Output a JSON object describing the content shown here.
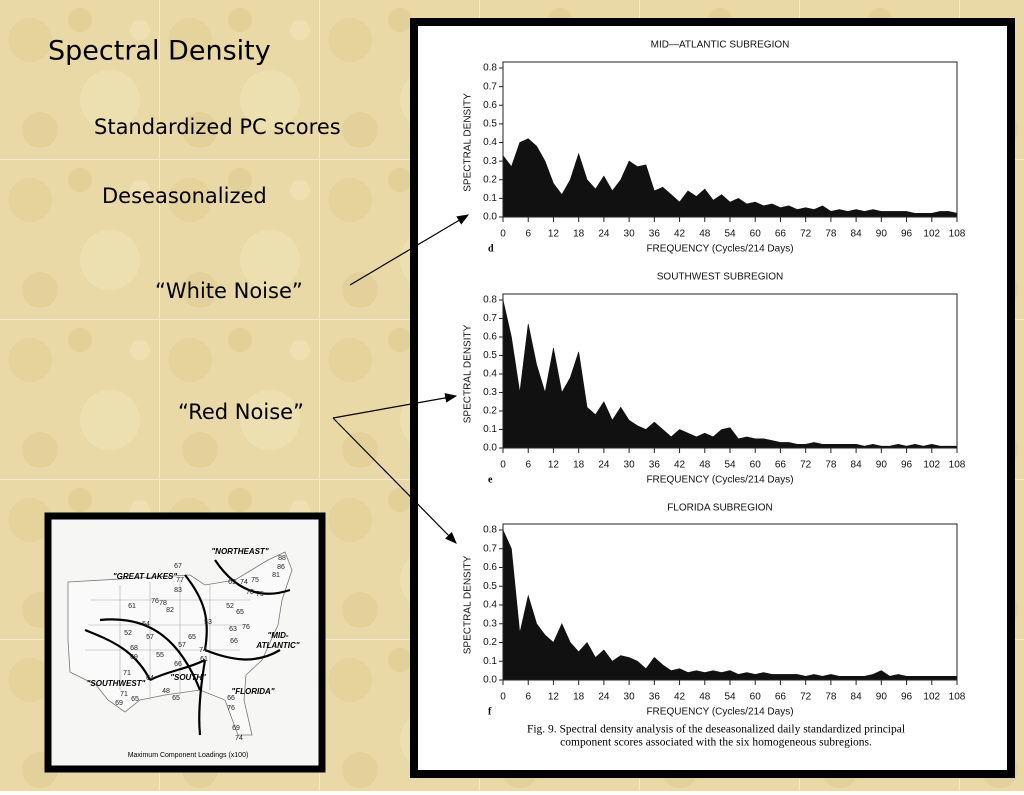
{
  "slide": {
    "title": "Spectral Density",
    "subtitle": "Standardized PC scores",
    "subtitle2": "Deseasonalized",
    "white_noise": "“White Noise”",
    "red_noise": "“Red Noise”"
  },
  "figure": {
    "caption": [
      "Fig. 9. Spectral density analysis of the deseasonalized daily standardized principal",
      "component scores associated with the six homogeneous subregions."
    ]
  },
  "chart_data": [
    {
      "type": "area",
      "title": "MID—ATLANTIC SUBREGION",
      "panel": "d",
      "x_label": "FREQUENCY (Cycles/214 Days)",
      "y_label": "SPECTRAL DENSITY",
      "color": "#111111",
      "x": [
        0,
        2,
        4,
        6,
        8,
        10,
        12,
        14,
        16,
        18,
        20,
        22,
        24,
        26,
        28,
        30,
        32,
        34,
        36,
        38,
        40,
        42,
        44,
        46,
        48,
        50,
        52,
        54,
        56,
        58,
        60,
        62,
        64,
        66,
        68,
        70,
        72,
        74,
        76,
        78,
        80,
        82,
        84,
        86,
        88,
        90,
        92,
        94,
        96,
        98,
        100,
        102,
        104,
        106,
        108
      ],
      "values": [
        0.33,
        0.27,
        0.4,
        0.42,
        0.38,
        0.3,
        0.18,
        0.12,
        0.2,
        0.34,
        0.2,
        0.15,
        0.22,
        0.14,
        0.2,
        0.3,
        0.27,
        0.28,
        0.14,
        0.16,
        0.12,
        0.08,
        0.14,
        0.11,
        0.15,
        0.09,
        0.12,
        0.08,
        0.1,
        0.07,
        0.08,
        0.06,
        0.07,
        0.05,
        0.06,
        0.04,
        0.05,
        0.04,
        0.06,
        0.03,
        0.04,
        0.03,
        0.04,
        0.03,
        0.04,
        0.03,
        0.03,
        0.03,
        0.03,
        0.02,
        0.02,
        0.02,
        0.03,
        0.03,
        0.02
      ],
      "xlim": [
        0,
        108
      ],
      "ylim": [
        0,
        0.8
      ],
      "xticks": [
        0,
        6,
        12,
        18,
        24,
        30,
        36,
        42,
        48,
        54,
        60,
        66,
        72,
        78,
        84,
        90,
        96,
        102,
        108
      ],
      "yticks": [
        {
          "value": 0,
          "label": "0.0"
        },
        0.1,
        0.2,
        0.3,
        0.4,
        0.5,
        0.6,
        0.7,
        0.8
      ]
    },
    {
      "type": "area",
      "title": "SOUTHWEST SUBREGION",
      "panel": "e",
      "x_label": "FREQUENCY (Cycles/214 Days)",
      "y_label": "SPECTRAL DENSITY",
      "color": "#111111",
      "x": [
        0,
        2,
        4,
        6,
        8,
        10,
        12,
        14,
        16,
        18,
        20,
        22,
        24,
        26,
        28,
        30,
        32,
        34,
        36,
        38,
        40,
        42,
        44,
        46,
        48,
        50,
        52,
        54,
        56,
        58,
        60,
        62,
        64,
        66,
        68,
        70,
        72,
        74,
        76,
        78,
        80,
        82,
        84,
        86,
        88,
        90,
        92,
        94,
        96,
        98,
        100,
        102,
        104,
        106,
        108
      ],
      "values": [
        0.8,
        0.6,
        0.3,
        0.67,
        0.45,
        0.3,
        0.54,
        0.3,
        0.38,
        0.52,
        0.22,
        0.18,
        0.25,
        0.15,
        0.22,
        0.15,
        0.12,
        0.1,
        0.14,
        0.1,
        0.06,
        0.1,
        0.08,
        0.06,
        0.08,
        0.06,
        0.1,
        0.11,
        0.05,
        0.06,
        0.05,
        0.05,
        0.04,
        0.03,
        0.03,
        0.02,
        0.02,
        0.03,
        0.02,
        0.02,
        0.02,
        0.02,
        0.02,
        0.01,
        0.02,
        0.01,
        0.01,
        0.02,
        0.01,
        0.02,
        0.01,
        0.02,
        0.01,
        0.01,
        0.01
      ],
      "xlim": [
        0,
        108
      ],
      "ylim": [
        0,
        0.8
      ],
      "xticks": [
        0,
        6,
        12,
        18,
        24,
        30,
        36,
        42,
        48,
        54,
        60,
        66,
        72,
        78,
        84,
        90,
        96,
        102,
        108
      ],
      "yticks": [
        {
          "value": 0,
          "label": "0.0"
        },
        0.1,
        0.2,
        0.3,
        0.4,
        0.5,
        0.6,
        0.7,
        0.8
      ]
    },
    {
      "type": "area",
      "title": "FLORIDA SUBREGION",
      "panel": "f",
      "x_label": "FREQUENCY (Cycles/214 Days)",
      "y_label": "SPECTRAL DENSITY",
      "color": "#111111",
      "x": [
        0,
        2,
        4,
        6,
        8,
        10,
        12,
        14,
        16,
        18,
        20,
        22,
        24,
        26,
        28,
        30,
        32,
        34,
        36,
        38,
        40,
        42,
        44,
        46,
        48,
        50,
        52,
        54,
        56,
        58,
        60,
        62,
        64,
        66,
        68,
        70,
        72,
        74,
        76,
        78,
        80,
        82,
        84,
        86,
        88,
        90,
        92,
        94,
        96,
        98,
        100,
        102,
        104,
        106,
        108
      ],
      "values": [
        0.8,
        0.7,
        0.25,
        0.45,
        0.3,
        0.24,
        0.2,
        0.3,
        0.2,
        0.15,
        0.2,
        0.12,
        0.16,
        0.1,
        0.13,
        0.12,
        0.1,
        0.06,
        0.12,
        0.08,
        0.05,
        0.06,
        0.04,
        0.05,
        0.04,
        0.05,
        0.04,
        0.05,
        0.03,
        0.04,
        0.03,
        0.04,
        0.03,
        0.03,
        0.03,
        0.03,
        0.02,
        0.03,
        0.02,
        0.03,
        0.02,
        0.02,
        0.02,
        0.02,
        0.03,
        0.05,
        0.02,
        0.03,
        0.02,
        0.02,
        0.02,
        0.02,
        0.02,
        0.02,
        0.02
      ],
      "xlim": [
        0,
        108
      ],
      "ylim": [
        0,
        0.8
      ],
      "xticks": [
        0,
        6,
        12,
        18,
        24,
        30,
        36,
        42,
        48,
        54,
        60,
        66,
        72,
        78,
        84,
        90,
        96,
        102,
        108
      ],
      "yticks": [
        {
          "value": 0,
          "label": "0.0"
        },
        0.1,
        0.2,
        0.3,
        0.4,
        0.5,
        0.6,
        0.7,
        0.8
      ]
    }
  ],
  "map": {
    "regions": [
      "\"NORTHEAST\"",
      "\"GREAT LAKES\"",
      "\"MID-",
      "ATLANTIC\"",
      "\"SOUTH\"",
      "\"SOUTHWEST\"",
      "\"FLORIDA\""
    ],
    "numbers": [
      67,
      77,
      83,
      76,
      78,
      82,
      61,
      52,
      54,
      57,
      68,
      69,
      55,
      71,
      71,
      65,
      69,
      64,
      48,
      65,
      66,
      74,
      61,
      57,
      65,
      53,
      52,
      65,
      66,
      63,
      76,
      69,
      74,
      75,
      78,
      75,
      88,
      86,
      81,
      66,
      76,
      69,
      74
    ],
    "caption": "Maximum Component Loadings (x100)"
  }
}
